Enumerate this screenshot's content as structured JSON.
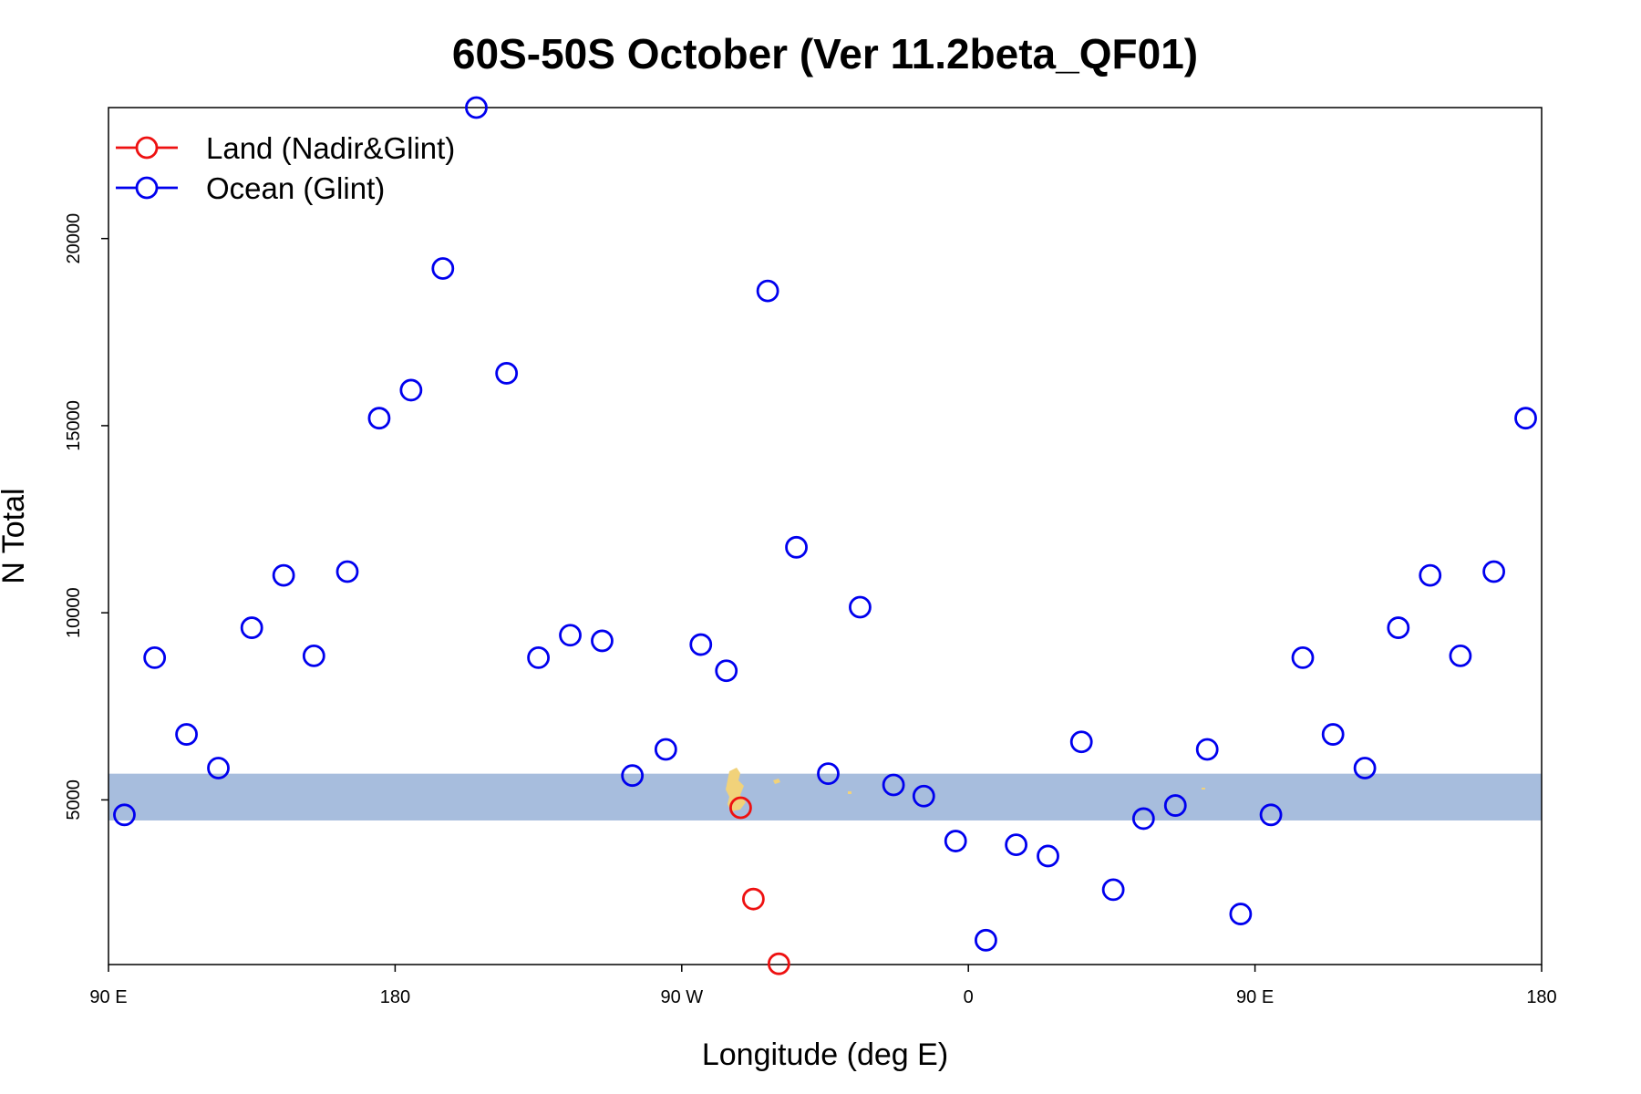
{
  "chart_data": {
    "type": "scatter",
    "title": "60S-50S October (Ver 11.2beta_QF01)",
    "xlabel": "Longitude (deg E)",
    "ylabel": "N Total",
    "x_tick_labels": [
      "90 E",
      "180",
      "90 W",
      "0",
      "90 E",
      "180"
    ],
    "x_range_deg_east_unwrapped": [
      90,
      540
    ],
    "y_ticks": [
      5000,
      10000,
      15000,
      20000
    ],
    "ylim": [
      600,
      23500
    ],
    "legend_position": "top-left",
    "series": [
      {
        "name": "Land (Nadir&Glint)",
        "color": "#ee1111",
        "points": [
          [
            288.5,
            4790
          ],
          [
            292.5,
            2350
          ],
          [
            300.5,
            620
          ]
        ]
      },
      {
        "name": "Ocean (Glint)",
        "color": "#0000ee",
        "points": [
          [
            95,
            4600
          ],
          [
            104.5,
            8800
          ],
          [
            114.5,
            6750
          ],
          [
            124.5,
            5850
          ],
          [
            135,
            9600
          ],
          [
            145,
            11000
          ],
          [
            154.5,
            8850
          ],
          [
            165,
            11100
          ],
          [
            175,
            15200
          ],
          [
            185,
            15950
          ],
          [
            195,
            19200
          ],
          [
            205.5,
            23500
          ],
          [
            215,
            16400
          ],
          [
            225,
            8800
          ],
          [
            235,
            9400
          ],
          [
            245,
            9250
          ],
          [
            254.5,
            5650
          ],
          [
            265,
            6350
          ],
          [
            276,
            9150
          ],
          [
            284,
            8450
          ],
          [
            297,
            18600
          ],
          [
            306,
            11750
          ],
          [
            316,
            5700
          ],
          [
            326,
            10150
          ],
          [
            336.5,
            5400
          ],
          [
            346,
            5100
          ],
          [
            356,
            3900
          ],
          [
            365.5,
            1250
          ],
          [
            375,
            3800
          ],
          [
            385,
            3500
          ],
          [
            395.5,
            6550
          ],
          [
            405.5,
            2600
          ],
          [
            415,
            4500
          ],
          [
            425,
            4850
          ],
          [
            435,
            6350
          ],
          [
            445.5,
            1950
          ],
          [
            455,
            4600
          ],
          [
            465,
            8800
          ],
          [
            474.5,
            6750
          ],
          [
            484.5,
            5850
          ],
          [
            495,
            9600
          ],
          [
            505,
            11000
          ],
          [
            514.5,
            8850
          ],
          [
            525,
            11100
          ],
          [
            535,
            15200
          ]
        ]
      }
    ],
    "band": {
      "y_range": [
        4450,
        5700
      ],
      "color": "#a7bddd"
    }
  },
  "colors": {
    "land_patches": "#f1d27a",
    "axis": "#000000",
    "background": "#ffffff"
  }
}
